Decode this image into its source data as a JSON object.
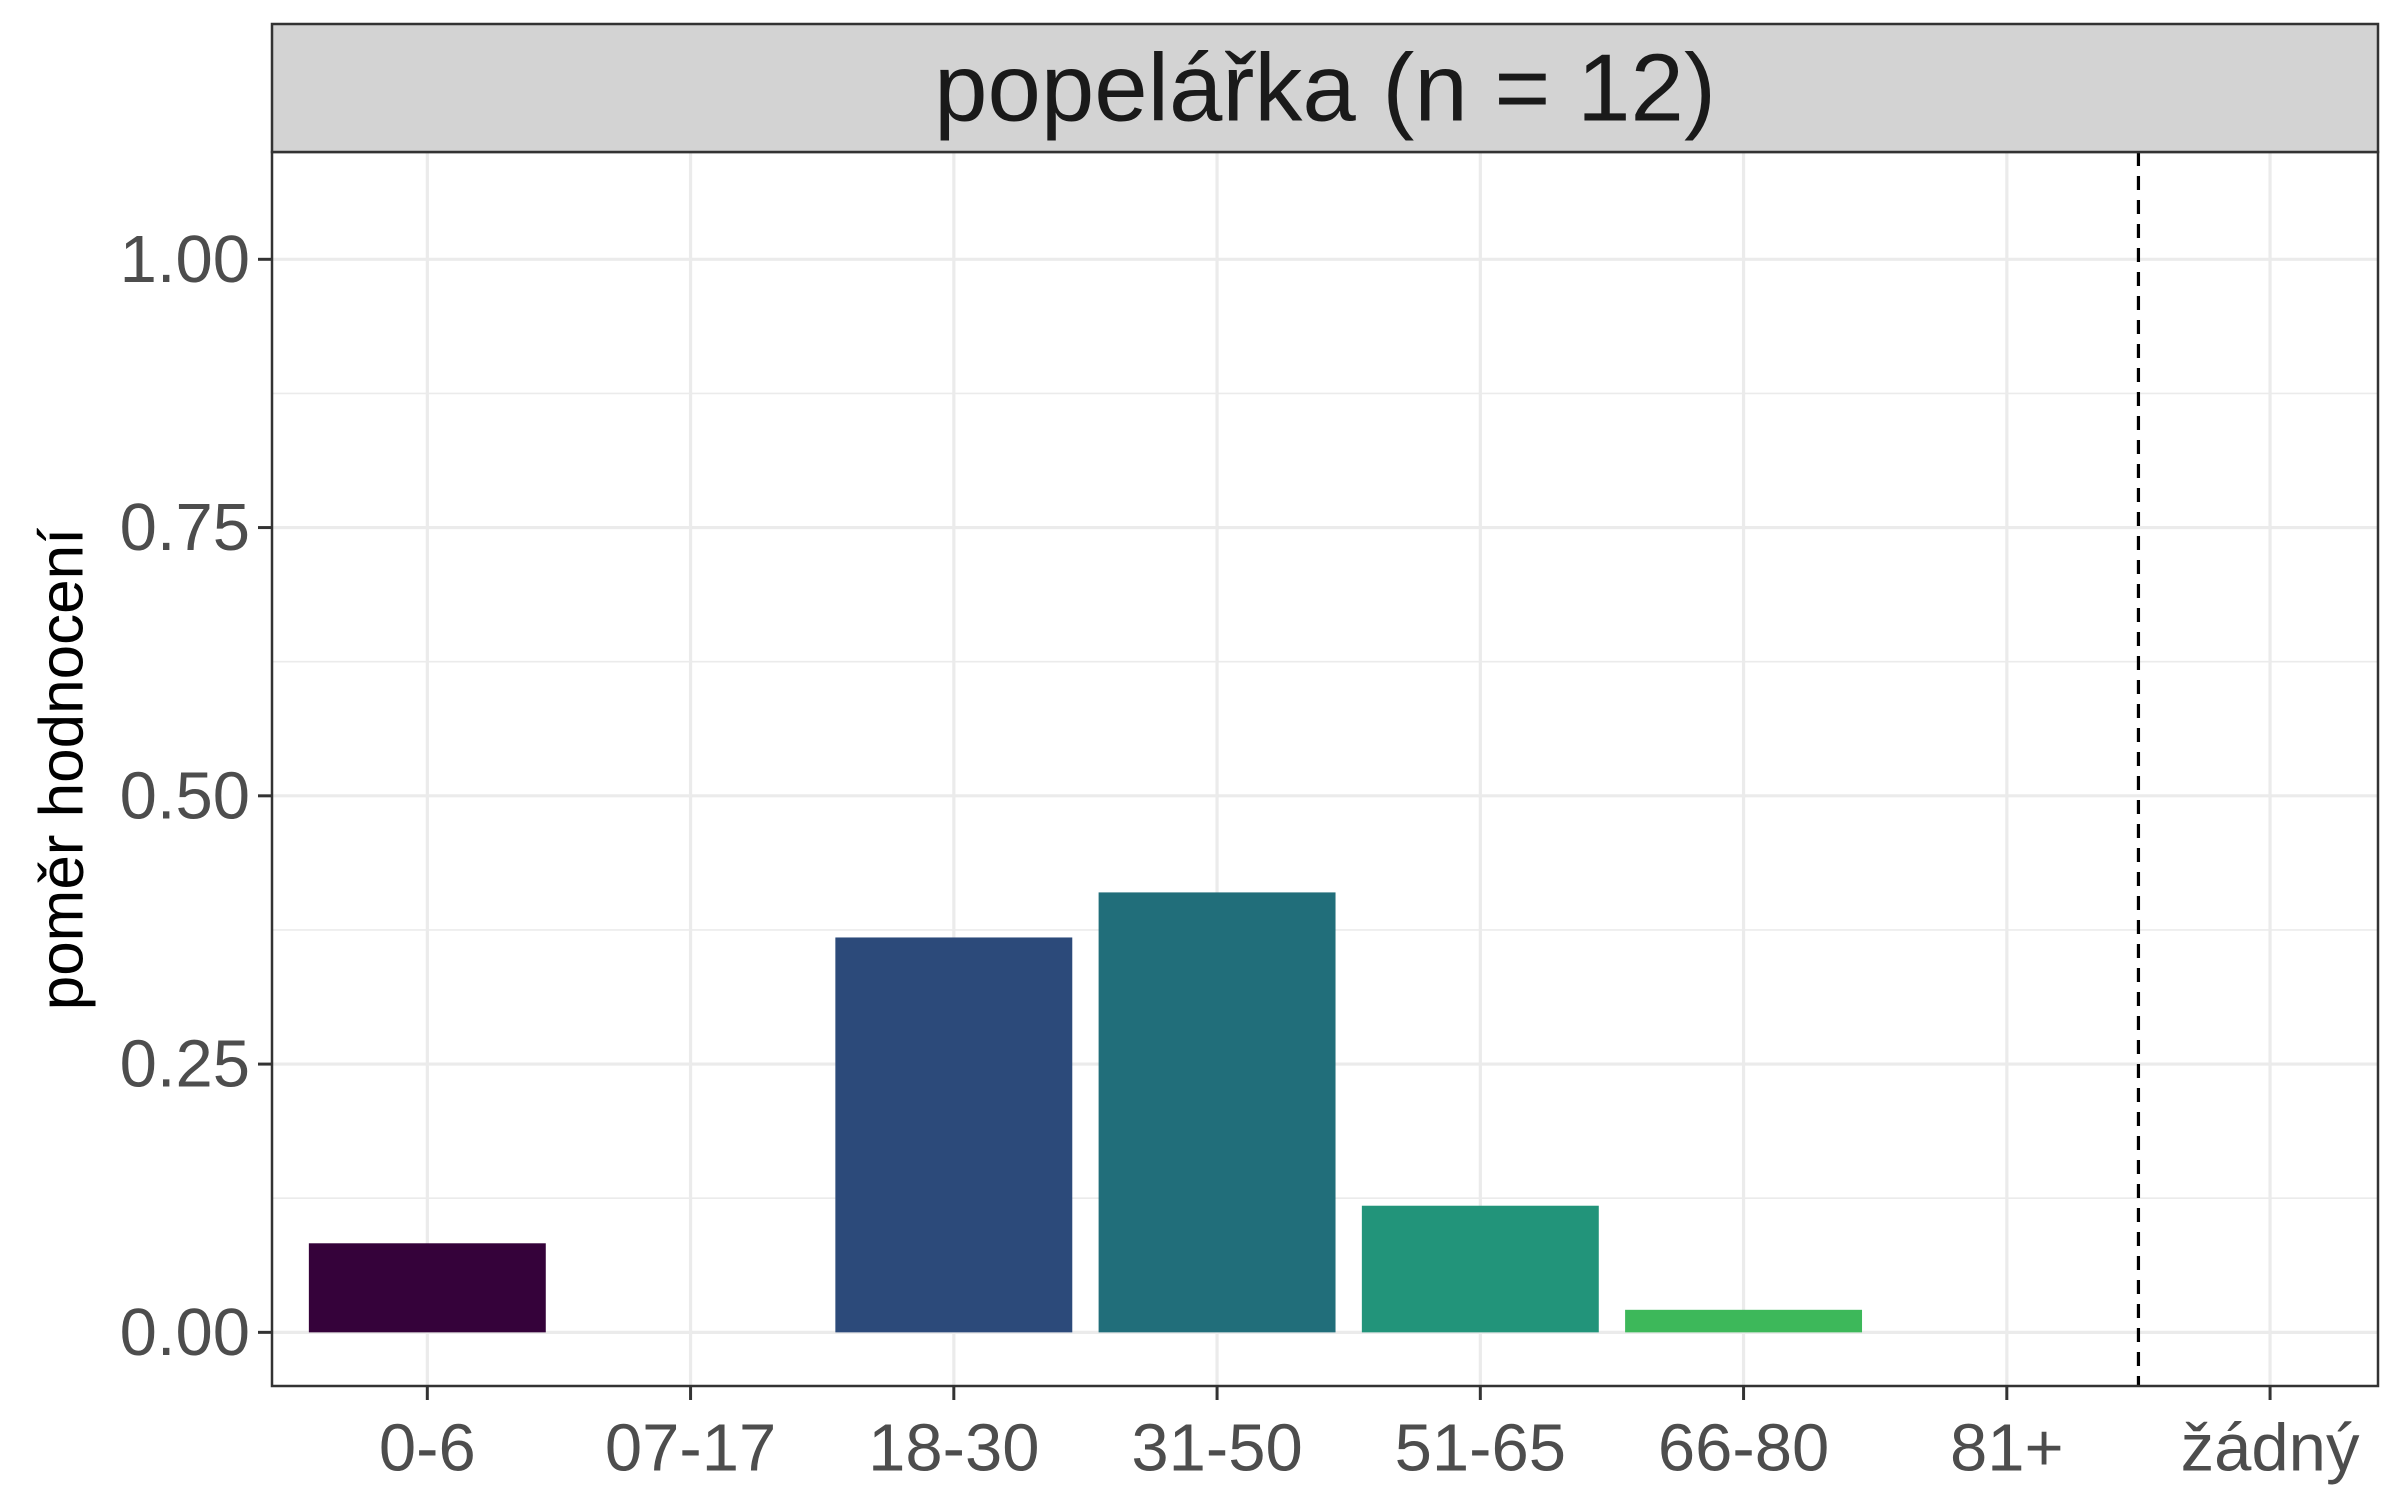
{
  "chart_data": {
    "type": "bar",
    "title": "popelářka (n = 12)",
    "xlabel": "",
    "ylabel": "poměr hodnocení",
    "categories": [
      "0-6",
      "07-17",
      "18-30",
      "31-50",
      "51-65",
      "66-80",
      "81+",
      "žádný"
    ],
    "values": [
      0.083,
      0,
      0.368,
      0.41,
      0.118,
      0.021,
      0,
      0
    ],
    "bar_colors": [
      "#35023A",
      "#35023A",
      "#2C4A7A",
      "#216E7A",
      "#22947A",
      "#3DB85A",
      "#7AD151",
      "#FDE725"
    ],
    "ylim": [
      -0.05,
      1.1
    ],
    "yticks": [
      0.0,
      0.25,
      0.5,
      0.75,
      1.0
    ],
    "ytick_labels": [
      "0.00",
      "0.25",
      "0.50",
      "0.75",
      "1.00"
    ],
    "reference_line": {
      "between": [
        "81+",
        "žádný"
      ],
      "style": "dashed"
    },
    "grid": true,
    "legend": "none",
    "colors": {
      "panel_border": "#333333",
      "strip_fill": "#d3d3d3",
      "grid": "#ebebeb",
      "tick": "#333333"
    }
  }
}
